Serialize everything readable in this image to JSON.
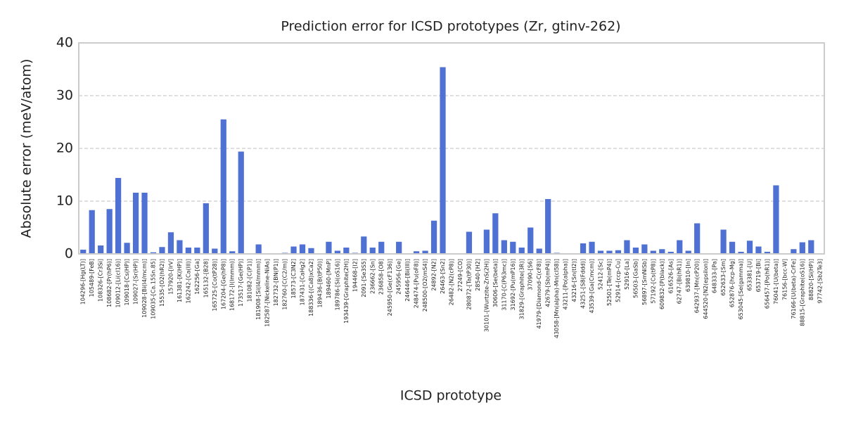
{
  "chart_data": {
    "type": "bar",
    "title": "Prediction error for ICSD prototypes (Zr, gtinv-262)",
    "xlabel": "ICSD prototype",
    "ylabel": "Absolute error (meV/atom)",
    "categories": [
      "104296-[Hg(LT)]",
      "105489-[FeB]",
      "108326-[Cr3Si]",
      "108682-[Pr(hP6)]",
      "109012-[Li(cI16)]",
      "109018-[Cs(HP)]",
      "109027-[Sr(HP)]",
      "109028-[Bi(I4/mcm)]",
      "109035-[Ca.15Sn.85]",
      "15535-[O2(hR2)]",
      "157920-[IrV]",
      "161381-[K(HP)]",
      "162242-[Ca(III)]",
      "162256-[Ga]",
      "165132-[B28]",
      "165725-[Co(tP28)]",
      "167204-[Ge(hP8)]",
      "168172-[I(Immm)]",
      "173517-[Ge(HP)]",
      "181082-[C(P1)]",
      "181908-[Si(I4/mmm)]",
      "182587-[Nickeline-NiAs]",
      "182732-[BN(P1)]",
      "182760-[C(C2/m)]",
      "18573-[C3N2]",
      "187431-[CaHg2]",
      "188336-[(Ca8)xCa2]",
      "189436-[B(tP50)]",
      "189460-[MnP]",
      "189786-[Si(oS16)]",
      "193439-[Graphite(2H)]",
      "194468-[I2]",
      "2091-[Se3S5]",
      "236662-[Sn]",
      "236858-[O8]",
      "245950-[Ge(cF136)]",
      "245956-[Ge]",
      "246446-[Bi(III)]",
      "248474-[Pu(oF8)]",
      "248500-[O2(mS4)]",
      "24892-[N2]",
      "26463-[Sn2]",
      "26482-[N2(cP8)]",
      "27249-[CO]",
      "280872-[Ta(tP30)]",
      "28540-[H2]",
      "30101-[Wurtzite-ZnS(2H)]",
      "30606-[Se(beta)]",
      "31170-[C(P63mc)]",
      "31692-[Pu(mP16)]",
      "31829-[Graphite(3R)]",
      "37090-[S6]",
      "41979-[Diamond-C(cF8)]",
      "42679-[Sb(mP4)]",
      "43058-[Mn(alpha)-Mn(cI58)]",
      "43211-[Po(alpha)]",
      "43216-[Sn(tI2)]",
      "43251-[S8(Fddd)]",
      "43539-[Ga(Cmcm)]",
      "52412-[Sc]",
      "52501-[Te(mP4)]",
      "52914-[ccp-Cu]",
      "52916-[La]",
      "56503-[GaSb]",
      "56897-[SmNiSb]",
      "57192-[Cs(tP8)]",
      "609832-[P(black)]",
      "616526-[As]",
      "62747-[Bi(hR1)]",
      "639810-[In]",
      "642937-[Mn(cP20)]",
      "644520-[N2(epsilon)]",
      "648333-[Pa]",
      "652633-[Sm]",
      "652876-[hcp-Mg]",
      "653045-[Se(gamma)]",
      "653381-[U]",
      "653719-[Bi]",
      "656457-[Po(hR1)]",
      "76041-[U(beta)]",
      "76156-[bcc-W]",
      "76166-[U(beta)-CrFe]",
      "88815-[Graphite(oS16)]",
      "88820-[Si(HP)]",
      "97742-[Sb2Te3]"
    ],
    "values": [
      0.8,
      8.3,
      1.6,
      8.5,
      14.4,
      2.1,
      11.6,
      11.6,
      0.3,
      1.3,
      4.1,
      2.6,
      1.2,
      1.2,
      9.6,
      1.0,
      25.5,
      0.5,
      19.4,
      0,
      1.8,
      0,
      0,
      0.2,
      1.4,
      1.8,
      1.1,
      0,
      2.3,
      0.6,
      1.2,
      0.2,
      3.3,
      1.2,
      2.3,
      0,
      2.3,
      0,
      0.5,
      0.6,
      6.3,
      35.4,
      0,
      0,
      4.2,
      0,
      4.6,
      7.7,
      2.6,
      2.3,
      1.2,
      5.0,
      1.0,
      10.4,
      0.2,
      0,
      0,
      2.0,
      2.3,
      0.6,
      0.6,
      0.7,
      2.6,
      1.2,
      1.8,
      0.6,
      0.9,
      0.4,
      2.6,
      0.6,
      5.8,
      0,
      0,
      4.6,
      2.3,
      0.4,
      2.5,
      1.4,
      0.4,
      13.0,
      0,
      0.9,
      2.2,
      2.6,
      0
    ],
    "color": "#4f71d3",
    "ylim": [
      0,
      40
    ],
    "yticks": [
      0,
      10,
      20,
      30,
      40
    ],
    "grid": true
  }
}
